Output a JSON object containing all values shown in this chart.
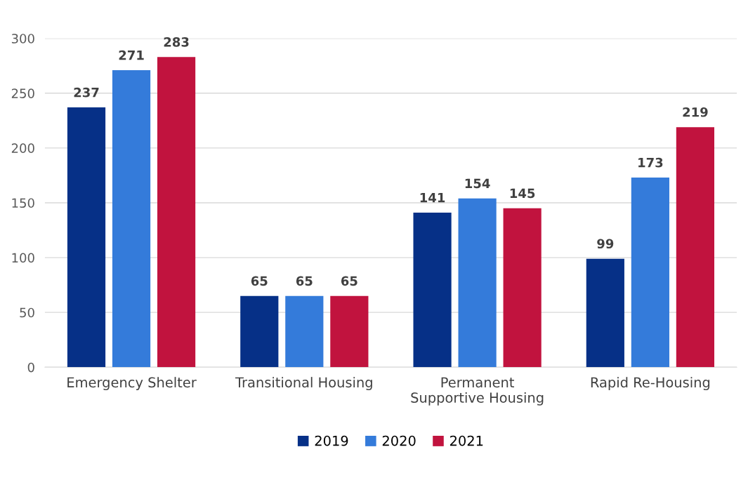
{
  "chart_data": {
    "type": "bar",
    "categories": [
      "Emergency Shelter",
      "Transitional Housing",
      "Permanent\nSupportive Housing",
      "Rapid Re-Housing"
    ],
    "series": [
      {
        "name": "2019",
        "color": "#063087",
        "values": [
          237,
          65,
          141,
          99
        ]
      },
      {
        "name": "2020",
        "color": "#347bda",
        "values": [
          271,
          65,
          154,
          173
        ]
      },
      {
        "name": "2021",
        "color": "#c1133e",
        "values": [
          283,
          65,
          145,
          219
        ]
      }
    ],
    "ylim": [
      0,
      300
    ],
    "yticks": [
      0,
      50,
      100,
      150,
      200,
      250,
      300
    ],
    "grid": "y",
    "legend": "bottom",
    "data_labels": true
  }
}
